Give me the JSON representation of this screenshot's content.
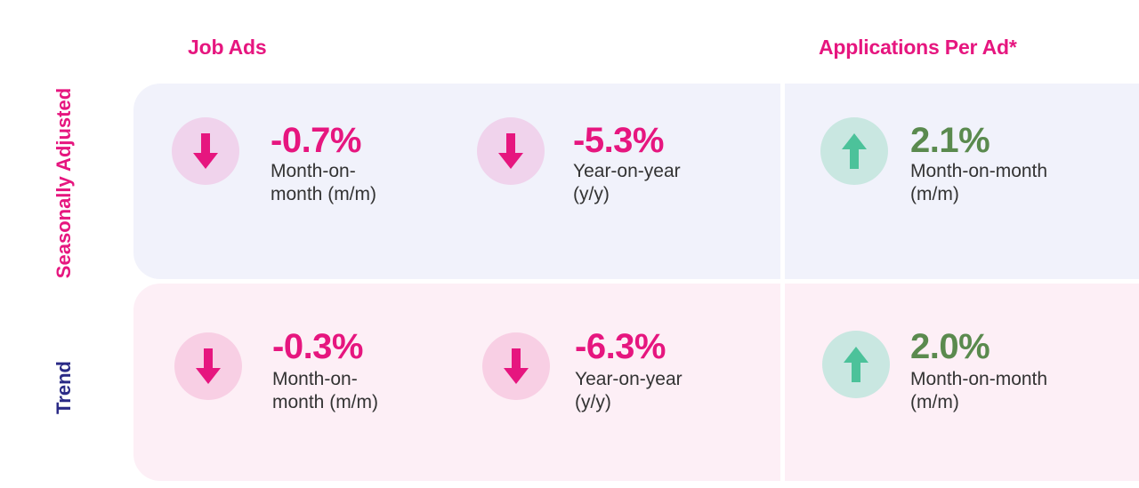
{
  "headers": {
    "job_ads": "Job Ads",
    "applications_per_ad": "Applications Per Ad*"
  },
  "rows": {
    "seasonally_adjusted": "Seasonally Adjusted",
    "trend": "Trend"
  },
  "metrics": {
    "sa_job_ads_mm": {
      "value": "-0.7%",
      "label_line1": "Month-on-",
      "label_line2": "month (m/m)",
      "direction": "down"
    },
    "sa_job_ads_yy": {
      "value": "-5.3%",
      "label_line1": "Year-on-year",
      "label_line2": "(y/y)",
      "direction": "down"
    },
    "sa_apps_mm": {
      "value": "2.1%",
      "label_line1": "Month-on-month",
      "label_line2": "(m/m)",
      "direction": "up"
    },
    "tr_job_ads_mm": {
      "value": "-0.3%",
      "label_line1": "Month-on-",
      "label_line2": "month (m/m)",
      "direction": "down"
    },
    "tr_job_ads_yy": {
      "value": "-6.3%",
      "label_line1": "Year-on-year",
      "label_line2": "(y/y)",
      "direction": "down"
    },
    "tr_apps_mm": {
      "value": "2.0%",
      "label_line1": "Month-on-month",
      "label_line2": "(m/m)",
      "direction": "up"
    }
  },
  "icons": {
    "down": "arrow-down-icon",
    "up": "arrow-up-icon"
  },
  "colors": {
    "brand_pink": "#e6167f",
    "navy": "#2a2a86",
    "positive_green": "#5a8a4e",
    "panel_sa_bg": "#f1f2fb",
    "panel_trend_bg": "#fdeff6",
    "down_circle_sa": "#f0d3ec",
    "down_circle_trend": "#f8cfe4",
    "up_circle": "#c9e7e1",
    "up_arrow": "#4cc29a"
  }
}
